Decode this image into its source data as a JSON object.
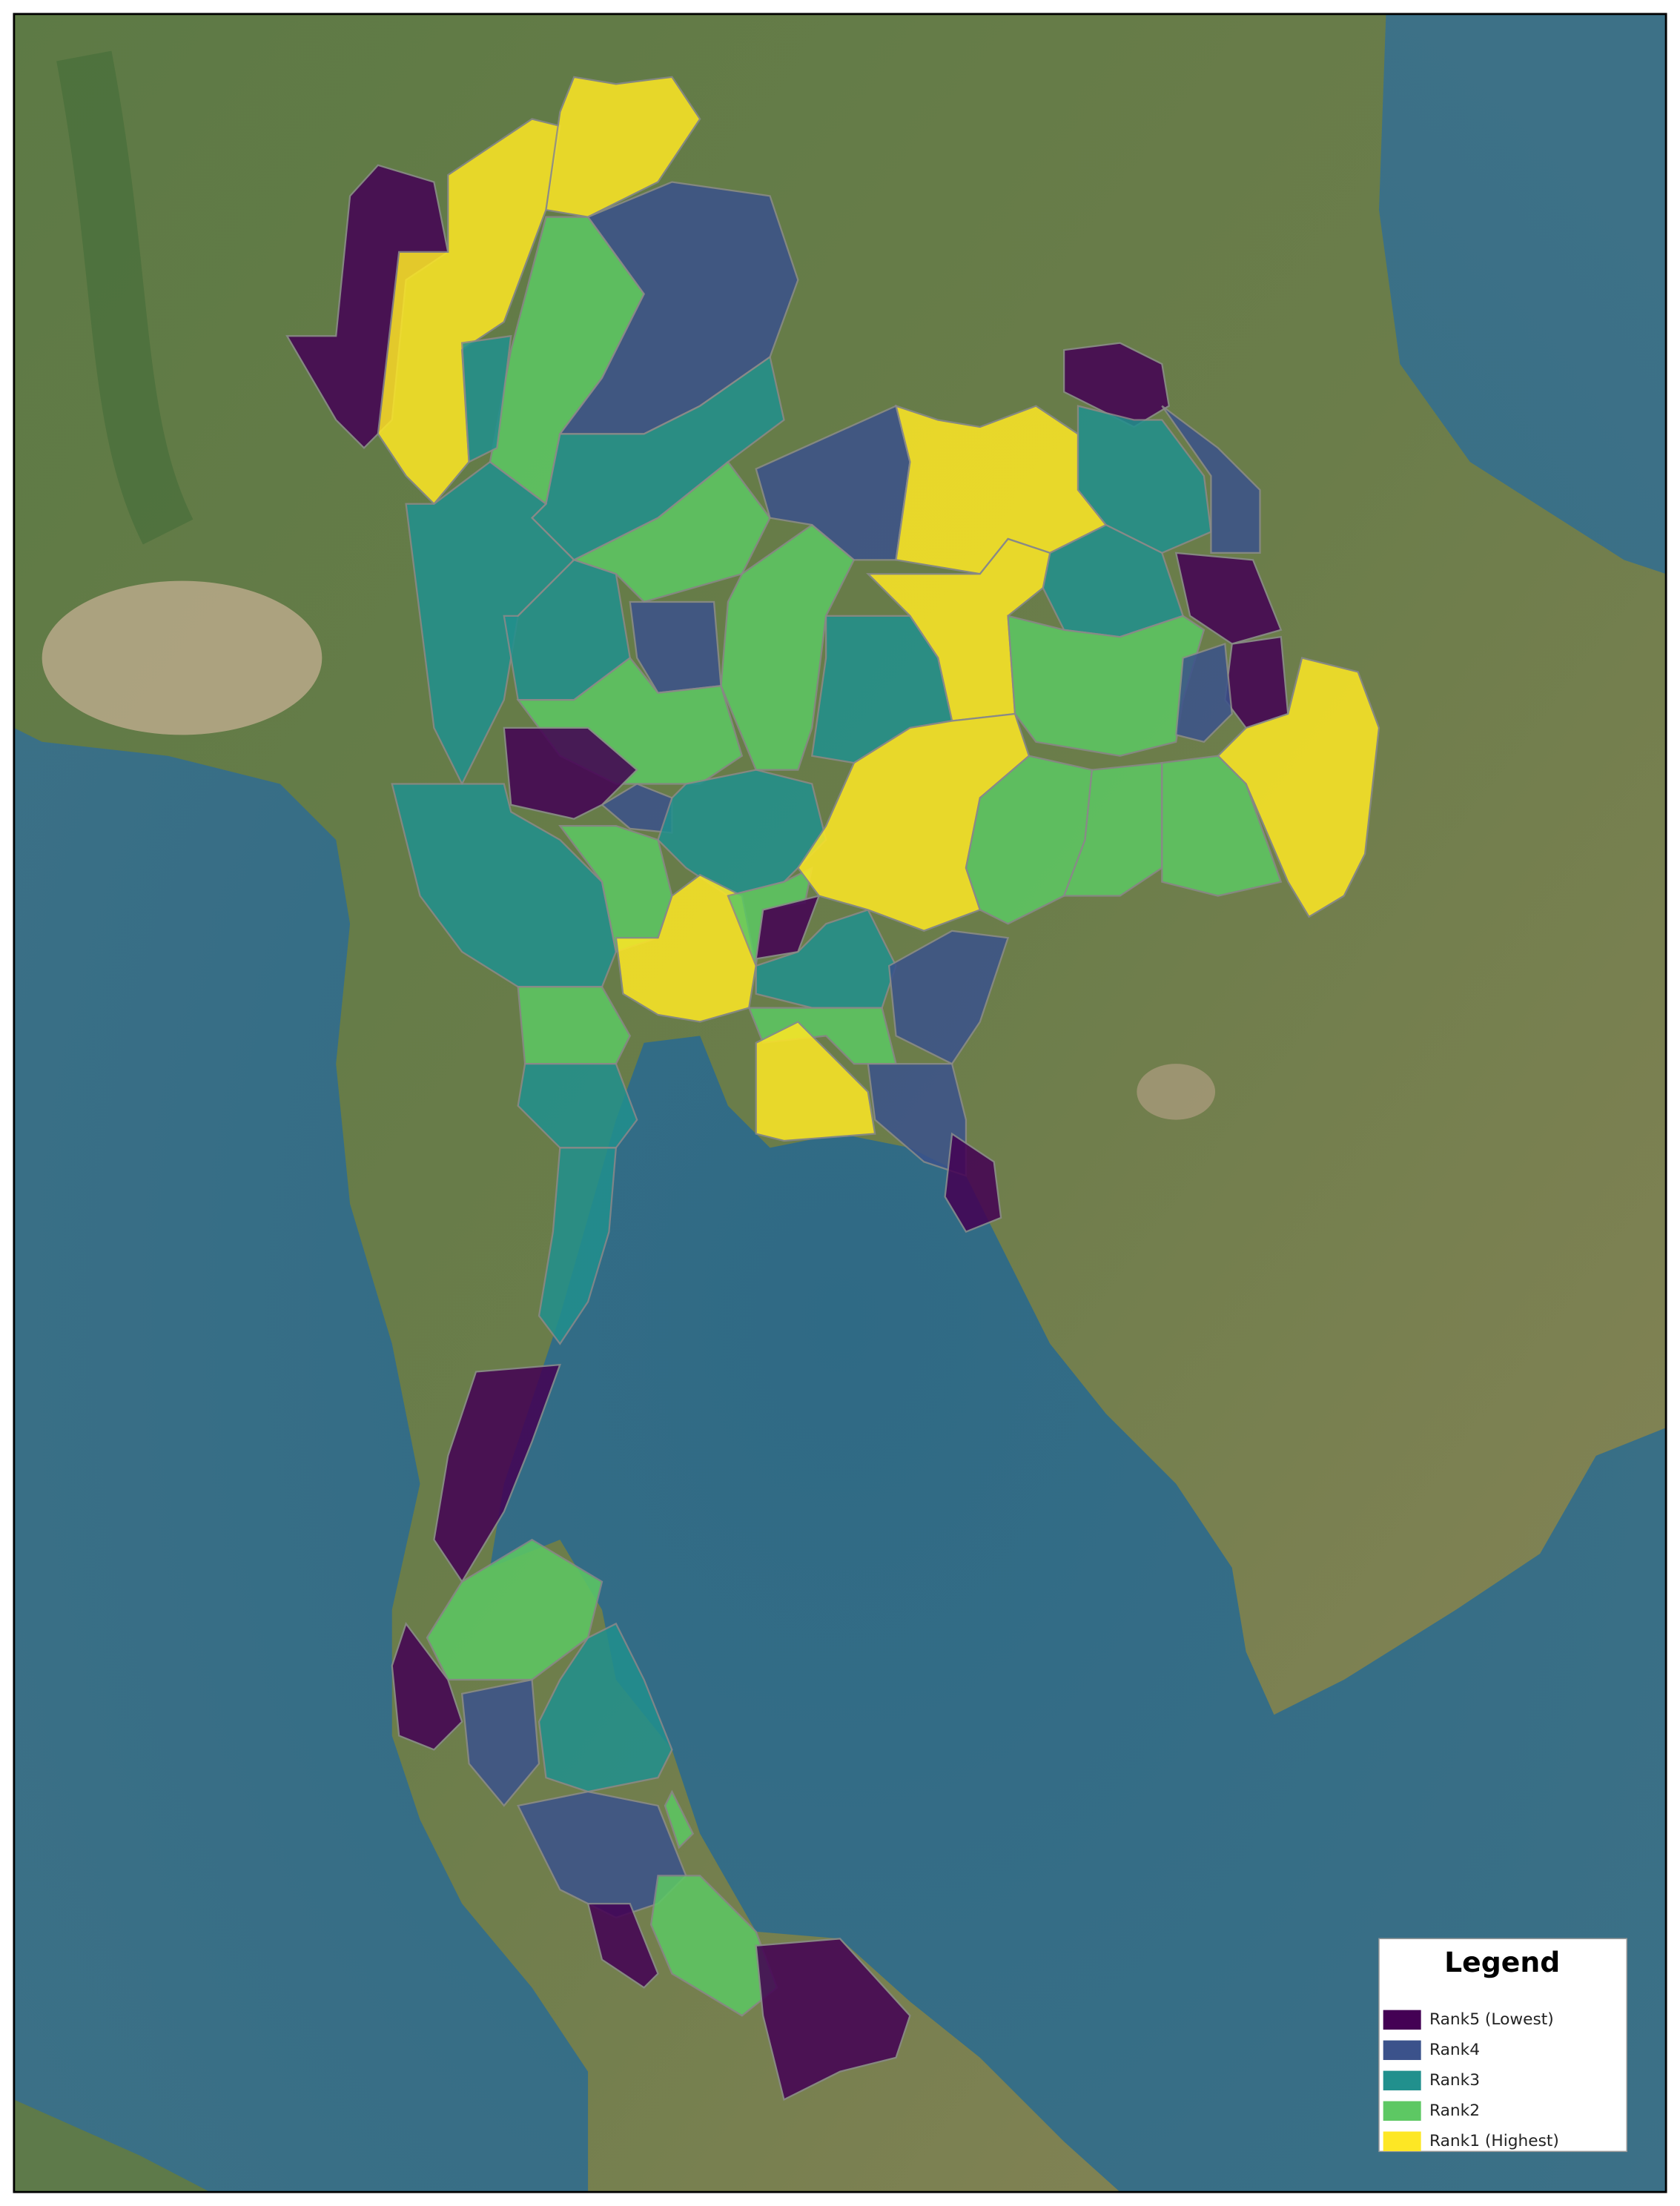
{
  "legend": {
    "title": "Legend",
    "items": [
      {
        "label": "Rank5 (Lowest)",
        "color": "#440154"
      },
      {
        "label": "Rank4",
        "color": "#3b528b"
      },
      {
        "label": "Rank3",
        "color": "#21908d"
      },
      {
        "label": "Rank2",
        "color": "#5dc863"
      },
      {
        "label": "Rank1 (Highest)",
        "color": "#fde725"
      }
    ]
  }
}
